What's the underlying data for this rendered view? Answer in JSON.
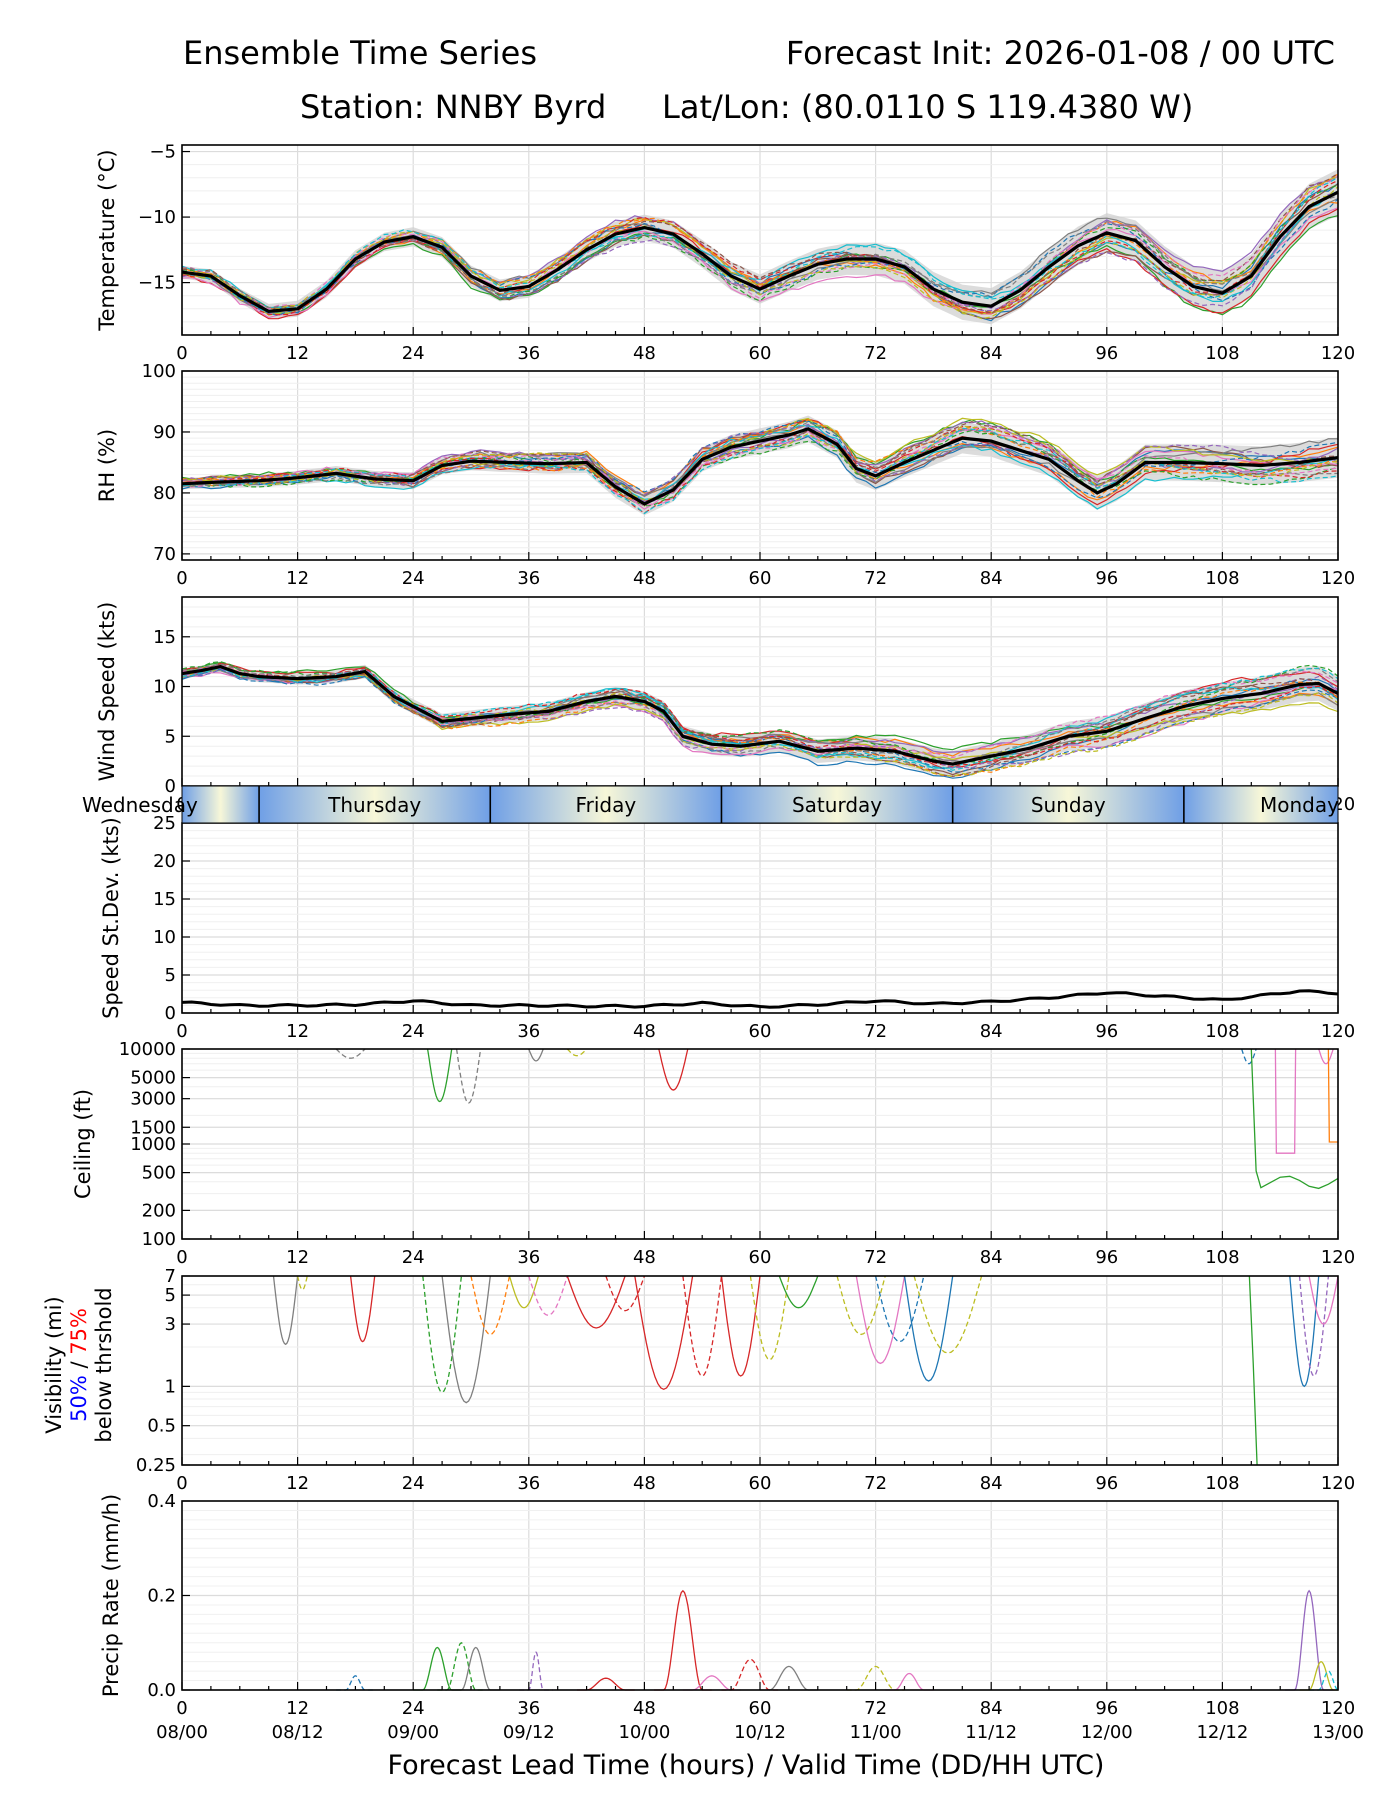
{
  "header": {
    "title_left": "Ensemble Time Series",
    "title_right": "Forecast Init: 2026-01-08 / 00 UTC",
    "station": "Station: NNBY Byrd",
    "latlon": "Lat/Lon: (80.0110 S 119.4380 W)"
  },
  "x_axis": {
    "range": [
      0,
      120
    ],
    "ticks": [
      "0",
      "12",
      "24",
      "36",
      "48",
      "60",
      "72",
      "84",
      "96",
      "108",
      "120"
    ],
    "valid_times": [
      "08/00",
      "08/12",
      "09/00",
      "09/12",
      "10/00",
      "10/12",
      "11/00",
      "11/12",
      "12/00",
      "12/12",
      "13/00"
    ],
    "xlabel": "Forecast Lead Time (hours) / Valid Time (DD/HH UTC)"
  },
  "day_band": {
    "labels": [
      "Wednesday",
      "Thursday",
      "Friday",
      "Saturday",
      "Sunday",
      "Monday"
    ],
    "boundaries_hours": [
      8,
      32,
      56,
      80,
      104
    ]
  },
  "visibility_label": {
    "line1": "Visibility (mi)",
    "pct50": "50%",
    "slash": " / ",
    "pct75": "75%",
    "line3": "below thrshold"
  },
  "member_colors": [
    "#1f77b4",
    "#ff7f0e",
    "#2ca02c",
    "#d62728",
    "#9467bd",
    "#8c564b",
    "#e377c2",
    "#7f7f7f",
    "#bcbd22",
    "#17becf"
  ],
  "chart_data": [
    {
      "type": "line",
      "name": "temperature",
      "ylabel": "Temperature (°C)",
      "ylim": [
        -19,
        -4.5
      ],
      "yticks": [
        -5,
        -10,
        -15
      ],
      "mean": {
        "x": [
          0,
          3,
          6,
          9,
          12,
          15,
          18,
          21,
          24,
          27,
          30,
          33,
          36,
          39,
          42,
          45,
          48,
          51,
          54,
          57,
          60,
          63,
          66,
          69,
          72,
          75,
          78,
          81,
          84,
          87,
          90,
          93,
          96,
          99,
          102,
          105,
          108,
          111,
          114,
          117,
          120
        ],
        "y": [
          -14.2,
          -14.5,
          -16.0,
          -17.2,
          -17.0,
          -15.5,
          -13.2,
          -11.9,
          -11.5,
          -12.3,
          -14.5,
          -15.6,
          -15.3,
          -14.0,
          -12.5,
          -11.3,
          -10.8,
          -11.3,
          -12.8,
          -14.5,
          -15.5,
          -14.5,
          -13.6,
          -13.2,
          -13.2,
          -13.8,
          -15.5,
          -16.5,
          -16.8,
          -15.6,
          -13.8,
          -12.2,
          -11.2,
          -11.8,
          -13.8,
          -15.3,
          -15.8,
          -14.5,
          -11.5,
          -9.2,
          -8.1
        ]
      }
    },
    {
      "type": "line",
      "name": "relative_humidity",
      "ylabel": "RH (%)",
      "ylim": [
        69,
        100
      ],
      "yticks": [
        100,
        90,
        80,
        70
      ],
      "mean": {
        "x": [
          0,
          4,
          8,
          12,
          16,
          20,
          24,
          27,
          30,
          34,
          38,
          42,
          45,
          48,
          51,
          54,
          57,
          60,
          63,
          65,
          68,
          70,
          72,
          75,
          78,
          81,
          84,
          87,
          90,
          93,
          95,
          97,
          100,
          104,
          108,
          112,
          116,
          120
        ],
        "y": [
          81.5,
          81.8,
          82.0,
          82.5,
          83.2,
          82.3,
          82.0,
          84.5,
          85.2,
          85.0,
          84.8,
          85.0,
          81.0,
          78.2,
          80.5,
          85.5,
          87.5,
          88.5,
          89.5,
          90.5,
          88.0,
          84.0,
          82.8,
          85.0,
          87.0,
          89.0,
          88.5,
          87.0,
          85.5,
          82.0,
          80.0,
          81.5,
          85.0,
          85.0,
          84.8,
          84.5,
          85.0,
          85.8
        ]
      }
    },
    {
      "type": "line",
      "name": "wind_speed",
      "ylabel": "Wind Speed (kts)",
      "ylim": [
        0,
        19
      ],
      "yticks": [
        15,
        10,
        5,
        0
      ],
      "mean": {
        "x": [
          0,
          2,
          4,
          6,
          8,
          12,
          16,
          19,
          22,
          25,
          27,
          30,
          34,
          38,
          42,
          45,
          48,
          50,
          52,
          55,
          58,
          62,
          66,
          70,
          74,
          78,
          80,
          84,
          88,
          92,
          96,
          100,
          104,
          108,
          112,
          116,
          118,
          120
        ],
        "y": [
          11.3,
          11.6,
          12.0,
          11.3,
          11.0,
          10.8,
          11.0,
          11.5,
          9.0,
          7.5,
          6.5,
          6.8,
          7.2,
          7.5,
          8.5,
          9.0,
          8.5,
          7.5,
          5.0,
          4.2,
          4.0,
          4.5,
          3.5,
          3.8,
          3.5,
          2.5,
          2.2,
          3.0,
          3.8,
          5.0,
          5.5,
          6.8,
          8.0,
          8.8,
          9.3,
          10.2,
          10.3,
          9.3
        ]
      }
    },
    {
      "type": "line",
      "name": "speed_std_dev",
      "ylabel": "Speed St.Dev. (kts)",
      "ylim": [
        0,
        25
      ],
      "yticks": [
        25,
        20,
        15,
        10,
        5,
        0
      ],
      "mean": {
        "x": [
          0,
          6,
          12,
          18,
          24,
          30,
          36,
          42,
          48,
          54,
          60,
          66,
          72,
          78,
          84,
          90,
          96,
          102,
          108,
          112,
          116,
          120
        ],
        "y": [
          1.4,
          1.0,
          1.0,
          1.1,
          1.6,
          1.0,
          1.0,
          0.9,
          0.9,
          1.3,
          0.8,
          1.1,
          1.6,
          1.2,
          1.5,
          2.0,
          2.7,
          2.2,
          1.7,
          2.3,
          2.9,
          2.6
        ]
      }
    },
    {
      "type": "line",
      "name": "ceiling",
      "ylabel": "Ceiling (ft)",
      "yscale": "log",
      "ylim": [
        100,
        10000
      ],
      "yticks": [
        "10000",
        "5000",
        "3000",
        "1500",
        "1000",
        "500",
        "200",
        "100"
      ]
    },
    {
      "type": "line",
      "name": "visibility",
      "yscale": "log",
      "ylim": [
        0.25,
        7
      ],
      "yticks": [
        "7",
        "5",
        "3",
        "1",
        "0.5",
        "0.25"
      ]
    },
    {
      "type": "line",
      "name": "precip_rate",
      "ylabel": "Precip Rate (mm/h)",
      "ylim": [
        0,
        0.4
      ],
      "yticks": [
        "0.4",
        "0.2",
        "0.0"
      ],
      "peaks": [
        {
          "x": 52,
          "y": 0.21
        },
        {
          "x": 117,
          "y": 0.21
        }
      ]
    }
  ]
}
